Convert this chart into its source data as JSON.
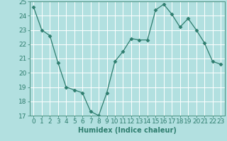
{
  "x": [
    0,
    1,
    2,
    3,
    4,
    5,
    6,
    7,
    8,
    9,
    10,
    11,
    12,
    13,
    14,
    15,
    16,
    17,
    18,
    19,
    20,
    21,
    22,
    23
  ],
  "y": [
    24.6,
    23.0,
    22.6,
    20.7,
    19.0,
    18.8,
    18.6,
    17.3,
    17.0,
    18.6,
    20.8,
    21.5,
    22.4,
    22.3,
    22.3,
    24.4,
    24.8,
    24.1,
    23.2,
    23.8,
    23.0,
    22.1,
    20.8,
    20.6
  ],
  "xlabel": "Humidex (Indice chaleur)",
  "ylabel": "",
  "xlim": [
    -0.5,
    23.5
  ],
  "ylim": [
    17,
    25
  ],
  "yticks": [
    17,
    18,
    19,
    20,
    21,
    22,
    23,
    24,
    25
  ],
  "xticks": [
    0,
    1,
    2,
    3,
    4,
    5,
    6,
    7,
    8,
    9,
    10,
    11,
    12,
    13,
    14,
    15,
    16,
    17,
    18,
    19,
    20,
    21,
    22,
    23
  ],
  "line_color": "#2e7d6e",
  "marker": "D",
  "marker_size": 2.5,
  "bg_color": "#b2e0e0",
  "grid_color": "#ffffff",
  "axis_color": "#4a9080",
  "tick_color": "#2e7d6e",
  "label_color": "#2e7d6e",
  "xlabel_fontsize": 7,
  "tick_fontsize": 6.5
}
